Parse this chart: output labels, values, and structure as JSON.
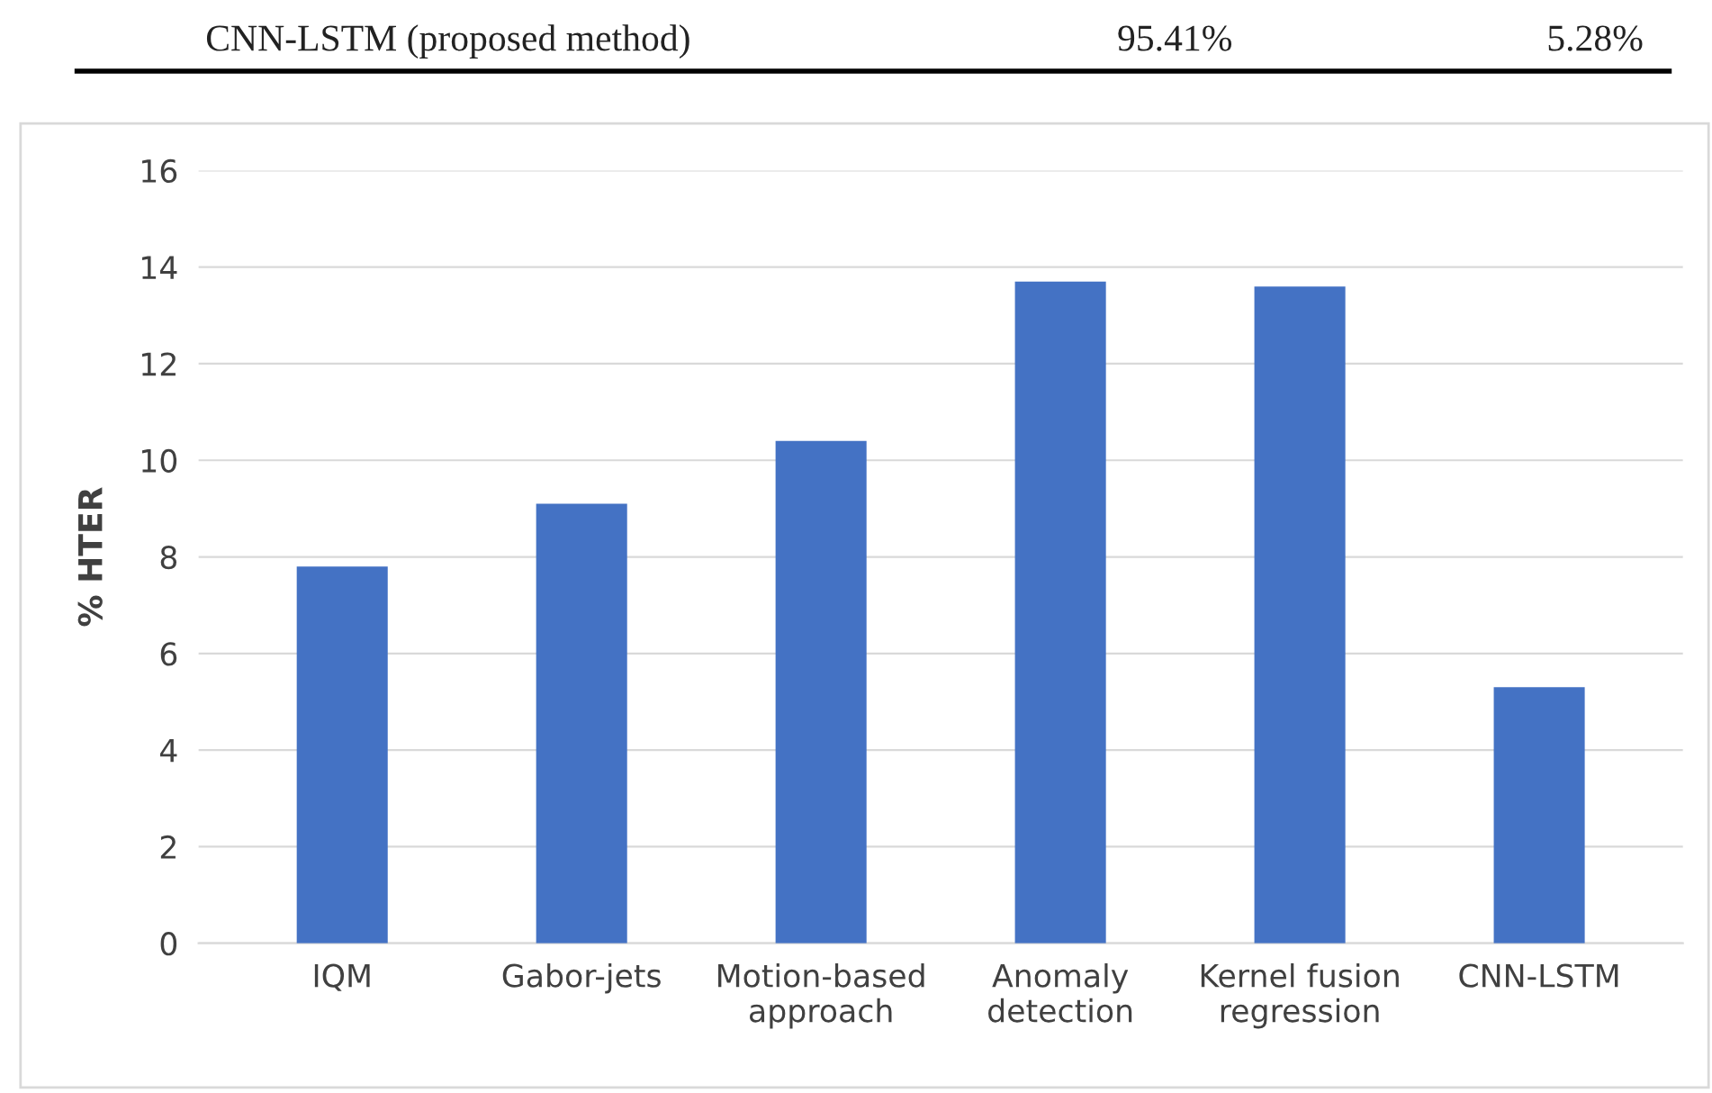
{
  "chart_data": {
    "type": "bar",
    "ylabel": "% HTER",
    "categories": [
      "IQM",
      "Gabor-jets",
      "Motion-based\napproach",
      "Anomaly\ndetection",
      "Kernel fusion\nregression",
      "CNN-LSTM"
    ],
    "values": [
      7.8,
      9.1,
      10.4,
      13.7,
      13.6,
      5.3
    ],
    "color": "#4472c4",
    "ylim": [
      0,
      16
    ],
    "yticks": [
      0,
      2,
      4,
      6,
      8,
      10,
      12,
      14,
      16
    ],
    "grid": "y",
    "annotations": [
      "CNN-LSTM (proposed method)",
      "95.41%",
      "5.28%"
    ]
  }
}
